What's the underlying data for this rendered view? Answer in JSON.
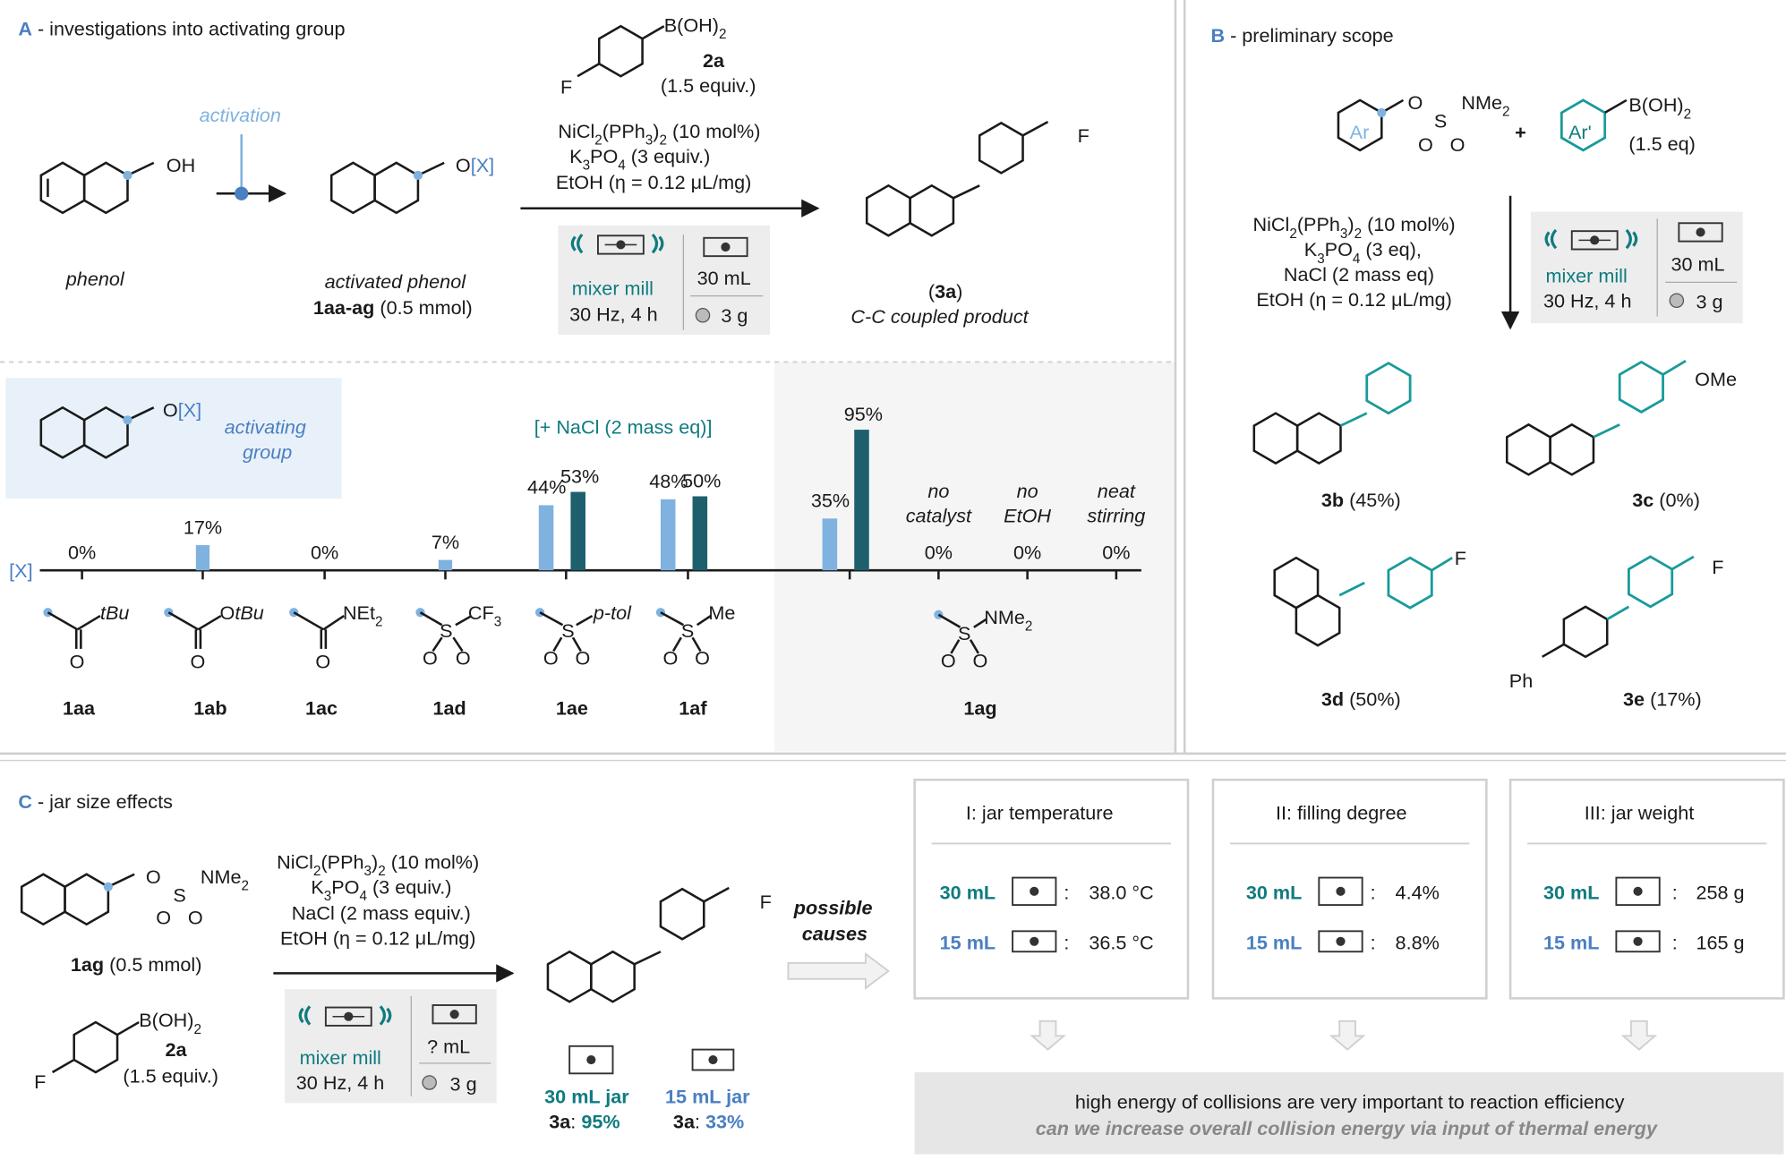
{
  "panelA": {
    "header_letter": "A",
    "header_text": " - investigations into activating group",
    "phenol_label": "phenol",
    "phenol_oh": "OH",
    "activation_label": "activation",
    "activated_ox": "O[X]",
    "activated_label": "activated phenol",
    "activated_code": "1aa-ag",
    "activated_amount": " (0.5 mmol)",
    "boronic": "B(OH)",
    "boronic_sub": "2",
    "boronic_f": "F",
    "boronic_code": "2a",
    "boronic_equiv": "(1.5 equiv.)",
    "cond1_a": "NiCl",
    "cond1_b": "2",
    "cond1_c": "(PPh",
    "cond1_d": "3",
    "cond1_e": ")",
    "cond1_f": "2",
    "cond1_g": " (10 mol%)",
    "cond2_a": "K",
    "cond2_b": "3",
    "cond2_c": "PO",
    "cond2_d": "4",
    "cond2_e": " (3 equiv.)",
    "cond3": "EtOH (η = 0.12 μL/mg)",
    "mill_label": "mixer mill",
    "mill_freq": "30 Hz, 4 h",
    "jar_volume": "30 mL",
    "ball_mass": "3 g",
    "product_f": "F",
    "product_code": "(3a)",
    "product_label": "C-C coupled product"
  },
  "activating_box": {
    "ox": "O[X]",
    "line1": "activating",
    "line2": "group"
  },
  "nacl_note": "[+ NaCl (2 mass eq)]",
  "x_axis_label": "[X]",
  "chart_data": {
    "type": "bar",
    "title": "",
    "categories": [
      "1aa",
      "1ab",
      "1ac",
      "1ad",
      "1ae",
      "1af",
      "1ag"
    ],
    "series": [
      {
        "values": [
          0,
          17,
          0,
          7,
          44,
          48,
          35
        ],
        "color": "#7fb2df"
      },
      {
        "name": "[+ NaCl (2 mass eq)]",
        "values": [
          null,
          null,
          null,
          null,
          53,
          50,
          95
        ],
        "color": "#1e5f6e"
      }
    ],
    "extra_conditions": [
      {
        "label1": "no",
        "label2": "catalyst",
        "value": 0
      },
      {
        "label1": "no",
        "label2": "EtOH",
        "value": 0
      },
      {
        "label1": "neat",
        "label2": "stirring",
        "value": 0
      }
    ],
    "value_labels": [
      "0%",
      "17%",
      "0%",
      "7%",
      "44%",
      "53%",
      "48%",
      "50%",
      "35%",
      "95%",
      "0%",
      "0%",
      "0%"
    ],
    "ylim": [
      0,
      100
    ]
  },
  "groups": {
    "aa_r": "tBu",
    "ab_r": "OtBu",
    "ac_r": "NEt",
    "ac_sub": "2",
    "ad_r": "CF",
    "ad_sub": "3",
    "ae_r": "p-tol",
    "af_r": "Me",
    "ag_r": "NMe",
    "ag_sub": "2",
    "o": "O",
    "s": "S"
  },
  "panelB": {
    "header_letter": "B",
    "header_text": " - preliminary scope",
    "reagent_o": "O",
    "reagent_s": "S",
    "reagent_nme": "NMe",
    "reagent_sub": "2",
    "ar": "Ar",
    "plus": "+",
    "ar_prime": "Ar'",
    "boronic": "B(OH)",
    "boronic_sub": "2",
    "boronic_equiv": "(1.5 eq)",
    "cond1_a": "NiCl",
    "cond1_b": "2",
    "cond1_c": "(PPh",
    "cond1_d": "3",
    "cond1_e": ")",
    "cond1_f": "2",
    "cond1_g": " (10 mol%)",
    "cond2_a": "K",
    "cond2_b": "3",
    "cond2_c": "PO",
    "cond2_d": "4",
    "cond2_e": " (3 eq),",
    "cond3": "NaCl (2 mass eq)",
    "cond4": "EtOH (η = 0.12  μL/mg)",
    "mill_label": "mixer mill",
    "mill_freq": "30 Hz, 4 h",
    "jar_volume": "30 mL",
    "ball_mass": "3 g",
    "products": [
      {
        "code": "3b",
        "yield": " (45%)"
      },
      {
        "code": "3c",
        "yield": " (0%)",
        "sub": "OMe"
      },
      {
        "code": "3d",
        "yield": " (50%)",
        "sub": "F"
      },
      {
        "code": "3e",
        "yield": " (17%)",
        "sub": "F",
        "sub2": "Ph"
      }
    ]
  },
  "panelC": {
    "header_letter": "C",
    "header_text": " - jar size effects",
    "reagent_o": "O",
    "reagent_s": "S",
    "reagent_nme": "NMe",
    "reagent_sub": "2",
    "reagent_code": "1ag",
    "reagent_amount": " (0.5 mmol)",
    "boronic": "B(OH)",
    "boronic_sub": "2",
    "boronic_f": "F",
    "boronic_code": "2a",
    "boronic_equiv": "(1.5 equiv.)",
    "cond1_a": "NiCl",
    "cond1_b": "2",
    "cond1_c": "(PPh",
    "cond1_d": "3",
    "cond1_e": ")",
    "cond1_f": "2",
    "cond1_g": " (10 mol%)",
    "cond2_a": "K",
    "cond2_b": "3",
    "cond2_c": "PO",
    "cond2_d": "4",
    "cond2_e": " (3 equiv.)",
    "cond3": "NaCl (2 mass equiv.)",
    "cond4": "EtOH (η = 0.12  μL/mg)",
    "mill_label": "mixer mill",
    "mill_freq": "30 Hz, 4 h",
    "jar_volume": "? mL",
    "ball_mass": "3 g",
    "product_f": "F",
    "jar30_label": "30 mL jar",
    "jar15_label": "15 mL jar",
    "yield_code": "3a",
    "jar30_yield": "95%",
    "jar15_yield": "33%",
    "possible": "possible",
    "causes": "causes",
    "causes_boxes": [
      {
        "title": "I: jar temperature",
        "row30_label": "30 mL",
        "row30_value": "38.0 °C",
        "row15_label": "15 mL",
        "row15_value": "36.5 °C"
      },
      {
        "title": "II: filling degree",
        "row30_label": "30 mL",
        "row30_value": "4.4%",
        "row15_label": "15 mL",
        "row15_value": "8.8%"
      },
      {
        "title": "III: jar weight",
        "row30_label": "30 mL",
        "row30_value": "258 g",
        "row15_label": "15 mL",
        "row15_value": "165 g"
      }
    ],
    "colon": ":",
    "conclusion1": "high energy of collisions are very important to reaction efficiency",
    "conclusion2": "can we increase overall collision energy via input of thermal energy"
  },
  "colors": {
    "blue": "#4a7fc1",
    "light_blue": "#7fb2df",
    "teal": "#0f7b7f",
    "dark_teal": "#1e5f6e",
    "panel_grey": "#f5f5f5",
    "box_blue": "#e8f1fa",
    "conclusion_bg": "#e6e6e6"
  }
}
